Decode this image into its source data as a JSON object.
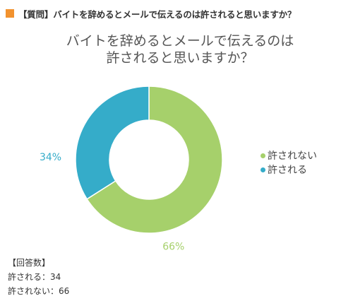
{
  "header": {
    "title": "【質問】バイトを辞めるとメールで伝えるのは許されると思いますか？",
    "square_color": "#f2922e"
  },
  "chart_data": {
    "type": "pie",
    "title_lines": [
      "バイトを辞めるとメールで伝えるのは",
      "許されると思いますか？"
    ],
    "donut": true,
    "slices": [
      {
        "name": "許されない",
        "value": 66,
        "label": "66%",
        "color": "#a6d06b"
      },
      {
        "name": "許される",
        "value": 34,
        "label": "34%",
        "color": "#35acc9"
      }
    ],
    "legend_position": "right"
  },
  "summary": {
    "heading": "【回答数】",
    "lines": [
      "許される：34",
      "許されない：66"
    ]
  }
}
